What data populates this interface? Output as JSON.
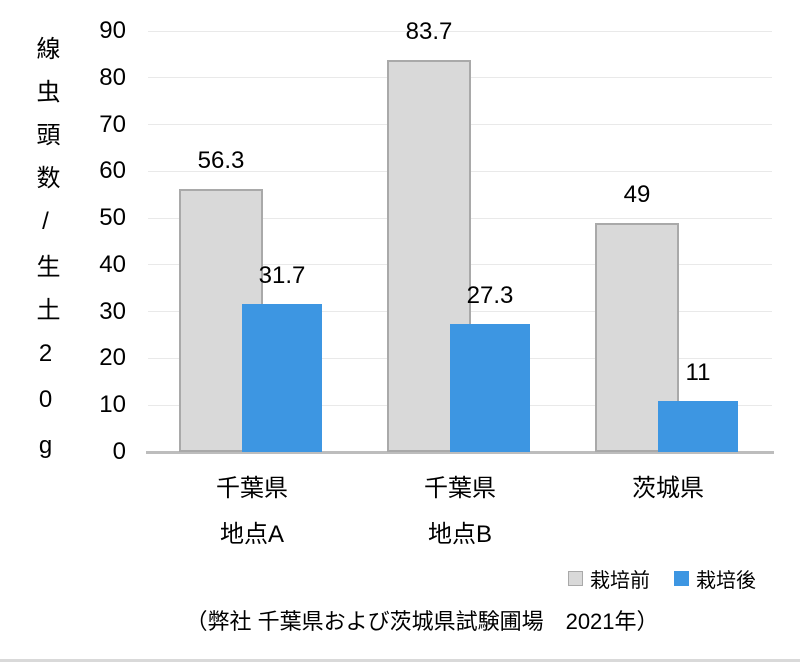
{
  "chart_data": {
    "type": "bar",
    "title": "",
    "ylabel": "線虫頭数/生土20g",
    "xlabel": "",
    "ylim": [
      0,
      90
    ],
    "ytick_step": 10,
    "grid": true,
    "legend_position": "bottom-right",
    "categories": [
      "千葉県 地点A",
      "千葉県 地点B",
      "茨城県"
    ],
    "category_lines": [
      [
        "千葉県",
        "地点A"
      ],
      [
        "千葉県",
        "地点B"
      ],
      [
        "茨城県"
      ]
    ],
    "series": [
      {
        "name": "栽培前",
        "values": [
          56.3,
          83.7,
          49
        ],
        "color": "#D9D9D9",
        "border_color": "#A9A9A9"
      },
      {
        "name": "栽培後",
        "values": [
          31.7,
          27.3,
          11
        ],
        "color": "#3D96E2",
        "border_color": null
      }
    ],
    "caption": "（弊社 千葉県および茨城県試験圃場　2021年）"
  },
  "colors": {
    "background": "#FFFFFF",
    "text": "#000000",
    "gridline": "#E9E9E9",
    "axis_line": "#BDBDBD",
    "divider": "#D9D9D9",
    "series_before": "#D9D9D9",
    "series_before_border": "#A9A9A9",
    "series_after": "#3D96E2"
  }
}
